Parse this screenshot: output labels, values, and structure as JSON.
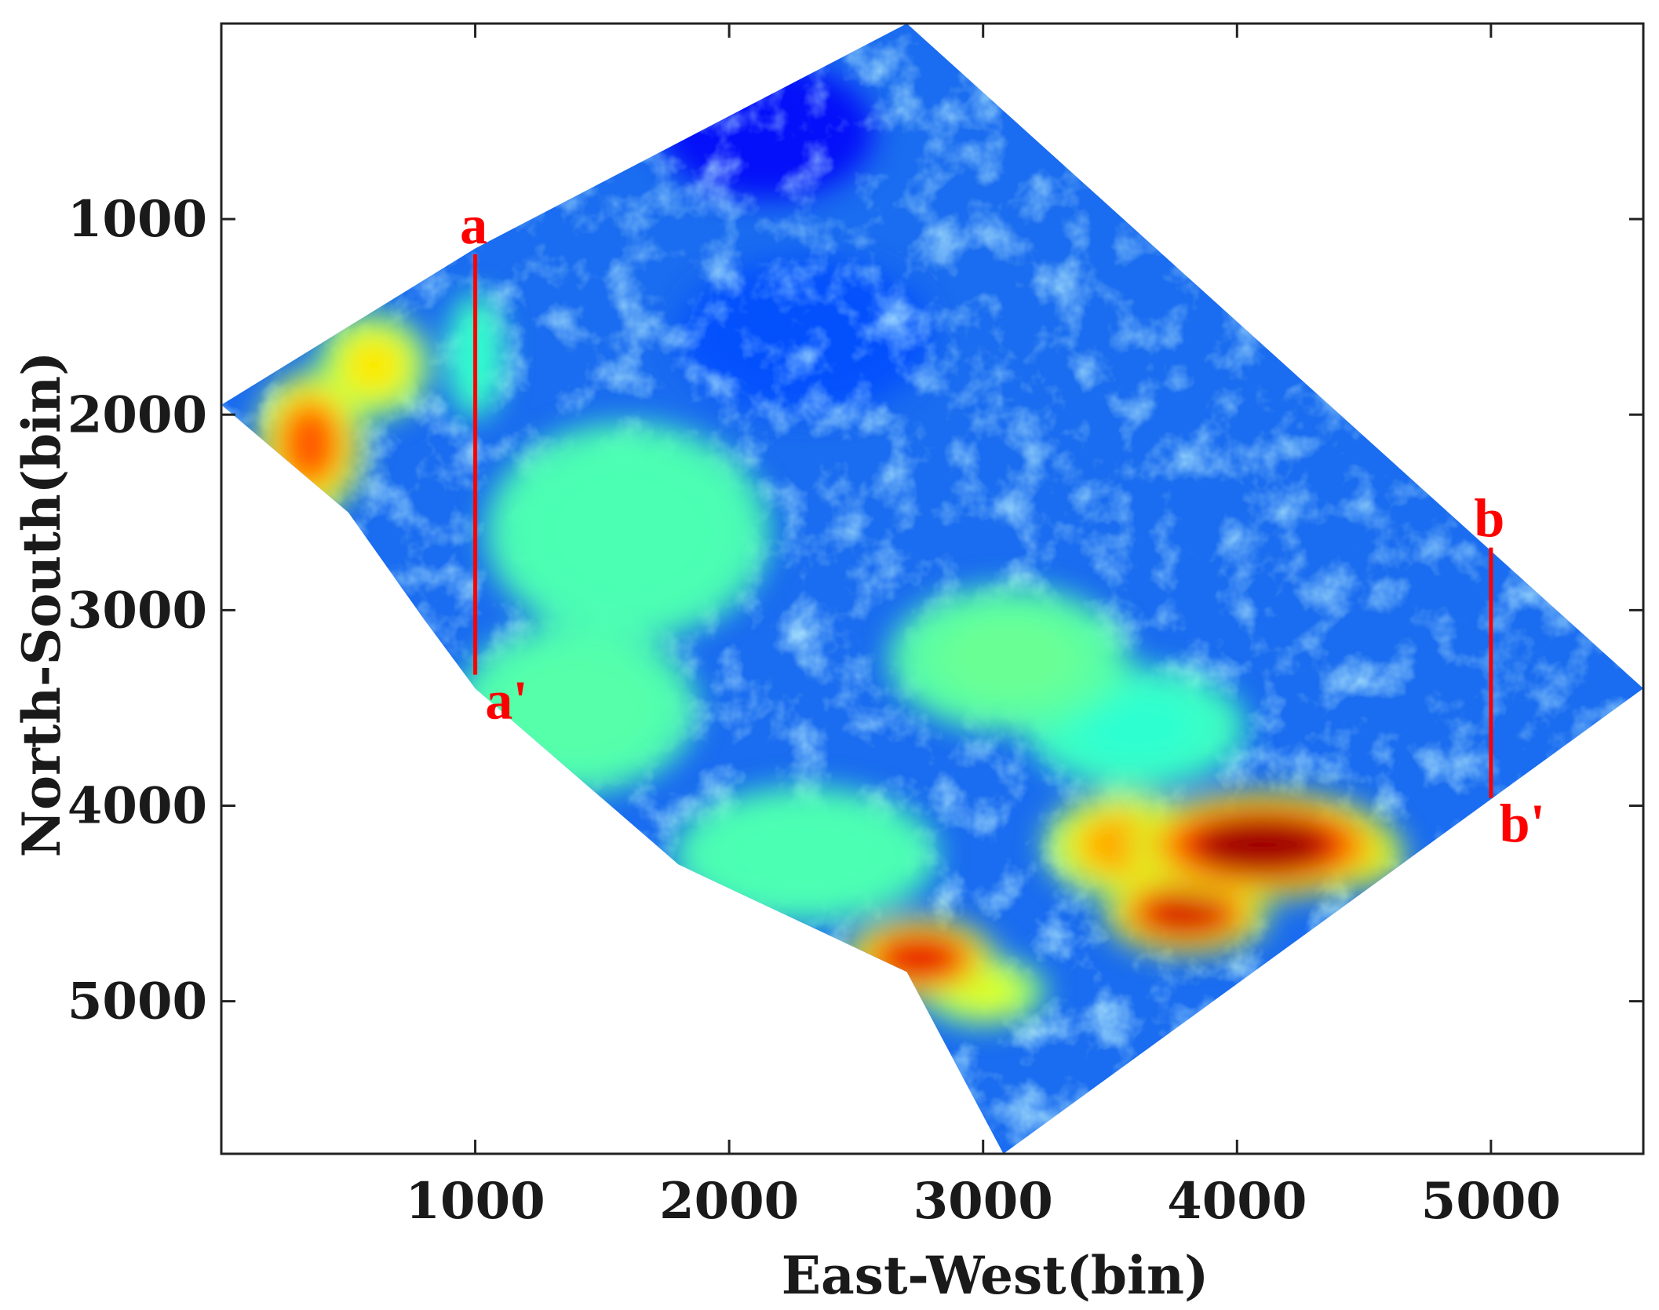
{
  "chart_data": {
    "type": "heatmap",
    "xlabel": "East-West(bin)",
    "ylabel": "North-South(bin)",
    "xlim": [
      0,
      5600
    ],
    "ylim": [
      0,
      5780
    ],
    "y_reversed": true,
    "x_ticks": [
      1000,
      2000,
      3000,
      4000,
      5000
    ],
    "y_ticks": [
      1000,
      2000,
      3000,
      4000,
      5000
    ],
    "x_tick_labels": [
      "1000",
      "2000",
      "3000",
      "4000",
      "5000"
    ],
    "y_tick_labels": [
      "1000",
      "2000",
      "3000",
      "4000",
      "5000"
    ],
    "colormap": "jet",
    "colors": {
      "profile_line": "#ff0000",
      "survey_base": "#1a6cf0"
    },
    "survey_outline": [
      [
        2700,
        0
      ],
      [
        5600,
        3400
      ],
      [
        3080,
        5780
      ],
      [
        2700,
        4850
      ],
      [
        1800,
        4300
      ],
      [
        1000,
        3400
      ],
      [
        800,
        3050
      ],
      [
        500,
        2500
      ],
      [
        0,
        1950
      ],
      [
        1000,
        1150
      ]
    ],
    "highlights": [
      {
        "x": 4100,
        "y": 4200,
        "level": 0.98,
        "rx": 420,
        "ry": 220
      },
      {
        "x": 3800,
        "y": 4550,
        "level": 0.92,
        "rx": 260,
        "ry": 170
      },
      {
        "x": 3550,
        "y": 4200,
        "level": 0.72,
        "rx": 250,
        "ry": 220
      },
      {
        "x": 4450,
        "y": 4250,
        "level": 0.85,
        "rx": 170,
        "ry": 140
      },
      {
        "x": 2750,
        "y": 4780,
        "level": 0.9,
        "rx": 240,
        "ry": 170
      },
      {
        "x": 3000,
        "y": 4950,
        "level": 0.6,
        "rx": 200,
        "ry": 140
      },
      {
        "x": 350,
        "y": 2150,
        "level": 0.8,
        "rx": 170,
        "ry": 300
      },
      {
        "x": 600,
        "y": 1750,
        "level": 0.65,
        "rx": 180,
        "ry": 220
      },
      {
        "x": 1000,
        "y": 1700,
        "level": 0.42,
        "rx": 90,
        "ry": 260
      },
      {
        "x": 3100,
        "y": 3250,
        "level": 0.48,
        "rx": 380,
        "ry": 300
      },
      {
        "x": 1600,
        "y": 2600,
        "level": 0.45,
        "rx": 450,
        "ry": 450
      },
      {
        "x": 1400,
        "y": 3500,
        "level": 0.46,
        "rx": 380,
        "ry": 350
      },
      {
        "x": 2300,
        "y": 4250,
        "level": 0.45,
        "rx": 420,
        "ry": 280
      },
      {
        "x": 3600,
        "y": 3600,
        "level": 0.42,
        "rx": 350,
        "ry": 250
      }
    ],
    "lows": [
      {
        "x": 2150,
        "y": 550,
        "level": 0.12,
        "rx": 420,
        "ry": 350
      },
      {
        "x": 2300,
        "y": 1600,
        "level": 0.2,
        "rx": 500,
        "ry": 400
      }
    ],
    "profiles": [
      {
        "name": "a",
        "end_name": "a'",
        "x": 1000,
        "y_start": 1180,
        "y_end": 3330
      },
      {
        "name": "b",
        "end_name": "b'",
        "x": 5000,
        "y_start": 2680,
        "y_end": 3960
      }
    ]
  }
}
